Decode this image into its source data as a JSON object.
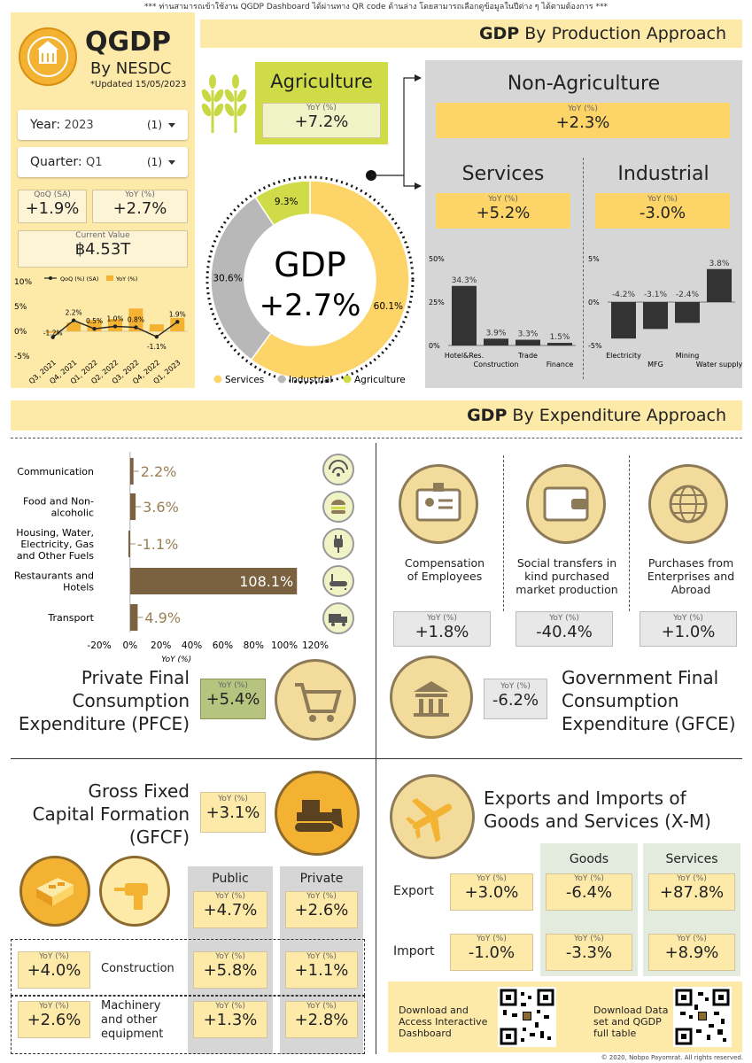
{
  "notice": "*** ท่านสามารถเข้าใช้งาน QGDP Dashboard ได้ผ่านทาง QR code ด้านล่าง โดยสามารถเลือกดูข้อมูลในปีต่าง ๆ ได้ตามต้องการ ***",
  "header": {
    "title": "QGDP",
    "subtitle": "By NESDC",
    "updated": "*Updated 15/05/2023"
  },
  "filters": {
    "year_label": "Year:",
    "year_value": "2023",
    "year_count": "(1)",
    "quarter_label": "Quarter:",
    "quarter_value": "Q1",
    "quarter_count": "(1)"
  },
  "left_kpis": {
    "qoq_label": "QoQ (SA)",
    "qoq_value": "+1.9%",
    "yoy_label": "YoY (%)",
    "yoy_value": "+2.7%",
    "current_label": "Current Value",
    "current_value": "฿4.53T"
  },
  "mini_chart": {
    "legend_qoq": "QoQ (%) (SA)",
    "legend_yoy": "YoY (%)",
    "y_ticks": [
      "10%",
      "5%",
      "0%",
      "-5%"
    ],
    "x_ticks": [
      "Q3, 2021",
      "Q4, 2021",
      "Q1, 2022",
      "Q2, 2022",
      "Q3, 2022",
      "Q4, 2022",
      "Q1, 2023"
    ],
    "labels": [
      "-1.2%",
      "2.2%",
      "0.5%",
      "1.0%",
      "0.8%",
      "-1.1%",
      "1.9%"
    ]
  },
  "production": {
    "title_bold": "GDP",
    "title_rest": " By Production Approach",
    "agri_title": "Agriculture",
    "agri_yoy_label": "YoY (%)",
    "agri_yoy": "+7.2%",
    "nonagri_title": "Non-Agriculture",
    "nonagri_yoy_label": "YoY (%)",
    "nonagri_yoy": "+2.3%",
    "services_title": "Services",
    "services_yoy_label": "YoY (%)",
    "services_yoy": "+5.2%",
    "industrial_title": "Industrial",
    "industrial_yoy_label": "YoY (%)",
    "industrial_yoy": "-3.0%",
    "gdp_label": "GDP",
    "gdp_value": "+2.7%",
    "donut_legend": [
      "Services",
      "Industrial",
      "Agriculture"
    ]
  },
  "expenditure": {
    "title_bold": "GDP",
    "title_rest": " By Expenditure Approach",
    "pfce_title_1": "Private Final",
    "pfce_title_2": "Consumption",
    "pfce_title_3": "Expenditure (PFCE)",
    "pfce_yoy_label": "YoY (%)",
    "pfce_yoy": "+5.4%",
    "pfce_x_label": "YoY (%)",
    "gfce_title_1": "Government Final",
    "gfce_title_2": "Consumption",
    "gfce_title_3": "Expenditure (GFCE)",
    "gfce_yoy_label": "YoY (%)",
    "gfce_yoy": "-6.2%",
    "gfce_items": [
      {
        "label_1": "Compensation",
        "label_2": "of Employees",
        "label_3": "",
        "yoy_label": "YoY (%)",
        "yoy": "+1.8%"
      },
      {
        "label_1": "Social transfers in",
        "label_2": "kind purchased",
        "label_3": "market production",
        "yoy_label": "YoY (%)",
        "yoy": "-40.4%"
      },
      {
        "label_1": "Purchases from",
        "label_2": "Enterprises and",
        "label_3": "Abroad",
        "yoy_label": "YoY (%)",
        "yoy": "+1.0%"
      }
    ]
  },
  "gfcf": {
    "title_1": "Gross Fixed",
    "title_2": "Capital Formation",
    "title_3": "(GFCF)",
    "yoy_label": "YoY (%)",
    "yoy": "+3.1%",
    "public_label": "Public",
    "private_label": "Private",
    "public_yoy": "+4.7%",
    "private_yoy": "+2.6%",
    "construction_label": "Construction",
    "construction_yoy": "+4.0%",
    "construction_public": "+5.8%",
    "construction_private": "+1.1%",
    "machinery_label_1": "Machinery",
    "machinery_label_2": "and other",
    "machinery_label_3": "equipment",
    "machinery_yoy": "+2.6%",
    "machinery_public": "+1.3%",
    "machinery_private": "+2.8%"
  },
  "xm": {
    "title_1": "Exports and Imports of",
    "title_2": "Goods and Services (X-M)",
    "goods_label": "Goods",
    "services_label": "Services",
    "export_label": "Export",
    "export_yoy": "+3.0%",
    "export_goods": "-6.4%",
    "export_services": "+87.8%",
    "import_label": "Import",
    "import_yoy": "-1.0%",
    "import_goods": "-3.3%",
    "import_services": "+8.9%",
    "yoy_label": "YoY (%)"
  },
  "downloads": {
    "dashboard_1": "Download and",
    "dashboard_2": "Access Interactive",
    "dashboard_3": "Dashboard",
    "dataset_1": "Download Data",
    "dataset_2": "set and QGDP",
    "dataset_3": "full table"
  },
  "footer": "© 2020, Nobpo Payomrat. All rights reserved.",
  "chart_data": [
    {
      "type": "line",
      "categories": [
        "Q3, 2021",
        "Q4, 2021",
        "Q1, 2022",
        "Q2, 2022",
        "Q3, 2022",
        "Q4, 2022",
        "Q1, 2023"
      ],
      "series": [
        {
          "name": "QoQ (%) (SA)",
          "values": [
            -1.2,
            2.2,
            0.5,
            1.0,
            0.8,
            -1.1,
            1.9
          ]
        },
        {
          "name": "YoY (%)",
          "values": [
            -0.3,
            1.8,
            2.3,
            2.5,
            4.6,
            1.4,
            2.7
          ]
        }
      ],
      "ylim": [
        -5,
        10
      ]
    },
    {
      "type": "pie",
      "categories": [
        "Services",
        "Industrial",
        "Agriculture"
      ],
      "values": [
        60.1,
        30.6,
        9.3
      ],
      "labels": [
        "60.1%",
        "30.6%",
        "9.3%"
      ],
      "colors": [
        "#fcd467",
        "#b8b8b8",
        "#cfdc47"
      ]
    },
    {
      "type": "bar",
      "categories": [
        "Hotel&Res.",
        "Construction",
        "Trade",
        "Finance"
      ],
      "values": [
        34.3,
        3.9,
        3.3,
        1.5
      ],
      "labels": [
        "34.3%",
        "3.9%",
        "3.3%",
        "1.5%"
      ],
      "y_ticks": [
        "50%",
        "25%",
        "0%"
      ],
      "ylim": [
        0,
        50
      ]
    },
    {
      "type": "bar",
      "categories": [
        "Electricity",
        "MFG",
        "Mining",
        "Water supply"
      ],
      "values": [
        -4.2,
        -3.1,
        -2.4,
        3.8
      ],
      "labels": [
        "-4.2%",
        "-3.1%",
        "-2.4%",
        "3.8%"
      ],
      "y_ticks": [
        "5%",
        "0%",
        "-5%"
      ],
      "ylim": [
        -5,
        5
      ]
    },
    {
      "type": "bar",
      "orientation": "horizontal",
      "categories": [
        "Communication",
        "Food and Non-alcoholic",
        "Housing, Water, Electricity, Gas and Other Fuels",
        "Restaurants and Hotels",
        "Transport"
      ],
      "values": [
        2.2,
        3.6,
        -1.1,
        108.1,
        4.9
      ],
      "labels": [
        "2.2%",
        "3.6%",
        "-1.1%",
        "108.1%",
        "4.9%"
      ],
      "x_ticks": [
        "-20%",
        "0%",
        "20%",
        "40%",
        "60%",
        "80%",
        "100%",
        "120%"
      ],
      "xlim": [
        -20,
        120
      ],
      "xlabel": "YoY (%)"
    }
  ]
}
